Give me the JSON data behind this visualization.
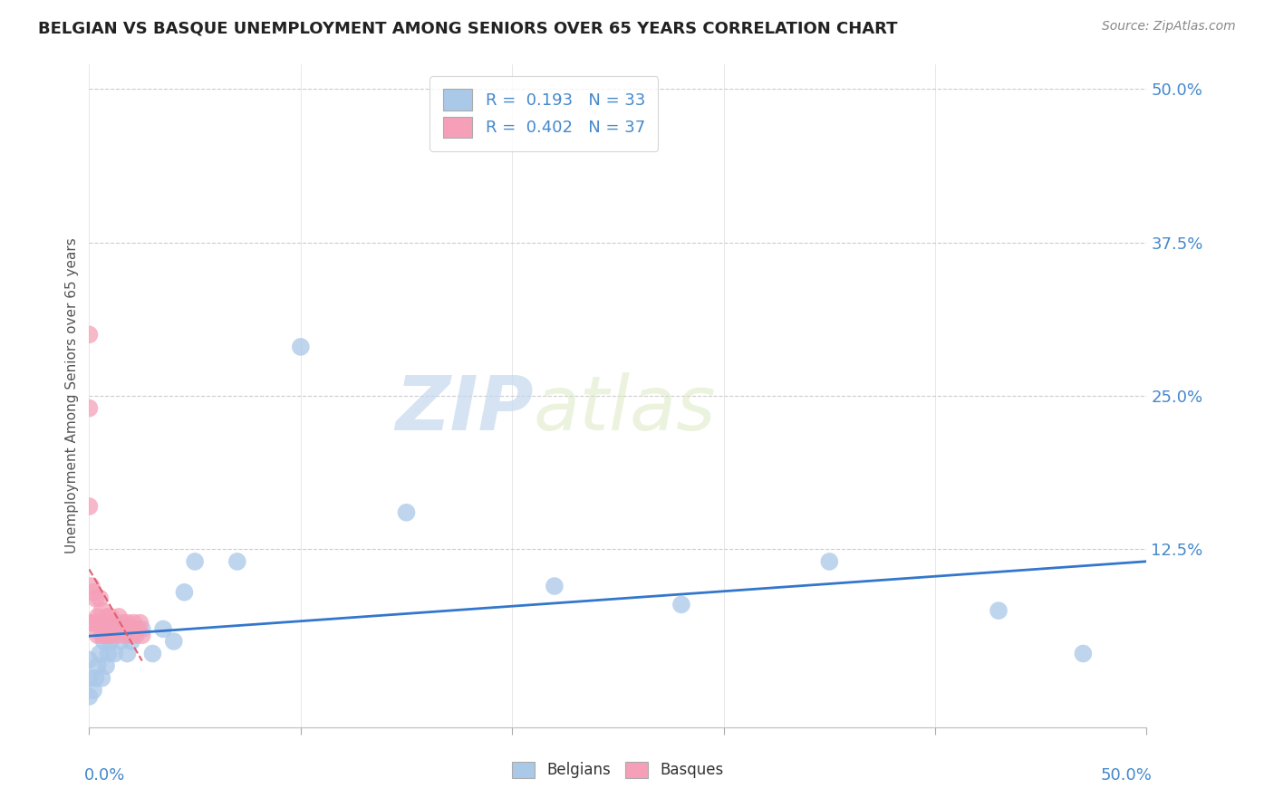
{
  "title": "BELGIAN VS BASQUE UNEMPLOYMENT AMONG SENIORS OVER 65 YEARS CORRELATION CHART",
  "source": "Source: ZipAtlas.com",
  "ylabel": "Unemployment Among Seniors over 65 years",
  "ytick_labels": [
    "50.0%",
    "37.5%",
    "25.0%",
    "12.5%"
  ],
  "ytick_values": [
    0.5,
    0.375,
    0.25,
    0.125
  ],
  "xlim": [
    0.0,
    0.5
  ],
  "ylim": [
    -0.02,
    0.52
  ],
  "watermark_zip": "ZIP",
  "watermark_atlas": "atlas",
  "legend_line1": "R =  0.193   N = 33",
  "legend_line2": "R =  0.402   N = 37",
  "belgian_color": "#aac8e8",
  "basque_color": "#f5a0b8",
  "belgian_line_color": "#3377cc",
  "basque_line_color": "#e06070",
  "belgians_x": [
    0.0,
    0.0,
    0.0,
    0.002,
    0.003,
    0.004,
    0.005,
    0.006,
    0.007,
    0.008,
    0.009,
    0.01,
    0.01,
    0.012,
    0.013,
    0.015,
    0.016,
    0.018,
    0.02,
    0.025,
    0.03,
    0.035,
    0.04,
    0.045,
    0.05,
    0.07,
    0.1,
    0.15,
    0.22,
    0.28,
    0.35,
    0.43,
    0.47
  ],
  "belgians_y": [
    0.005,
    0.02,
    0.035,
    0.01,
    0.02,
    0.03,
    0.04,
    0.02,
    0.05,
    0.03,
    0.04,
    0.05,
    0.06,
    0.04,
    0.06,
    0.05,
    0.06,
    0.04,
    0.05,
    0.06,
    0.04,
    0.06,
    0.05,
    0.09,
    0.115,
    0.115,
    0.29,
    0.155,
    0.095,
    0.08,
    0.115,
    0.075,
    0.04
  ],
  "basques_x": [
    0.0,
    0.0,
    0.0,
    0.001,
    0.001,
    0.002,
    0.002,
    0.003,
    0.003,
    0.004,
    0.004,
    0.005,
    0.005,
    0.006,
    0.006,
    0.007,
    0.007,
    0.008,
    0.008,
    0.009,
    0.01,
    0.01,
    0.011,
    0.012,
    0.013,
    0.014,
    0.015,
    0.016,
    0.017,
    0.018,
    0.019,
    0.02,
    0.021,
    0.022,
    0.023,
    0.024,
    0.025
  ],
  "basques_y": [
    0.3,
    0.24,
    0.16,
    0.065,
    0.095,
    0.065,
    0.09,
    0.065,
    0.085,
    0.07,
    0.055,
    0.065,
    0.085,
    0.055,
    0.075,
    0.055,
    0.065,
    0.06,
    0.07,
    0.055,
    0.055,
    0.07,
    0.065,
    0.065,
    0.055,
    0.07,
    0.06,
    0.065,
    0.055,
    0.065,
    0.06,
    0.055,
    0.065,
    0.055,
    0.06,
    0.065,
    0.055
  ]
}
